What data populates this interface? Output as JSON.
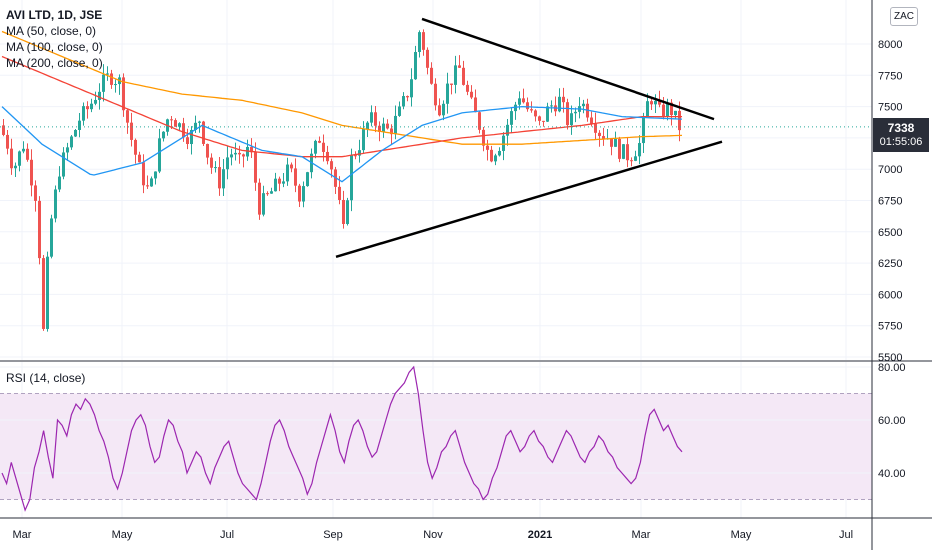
{
  "header": {
    "symbol_line": "AVI LTD, 1D, JSE",
    "ma50": "MA (50, close, 0)",
    "ma100": "MA (100, close, 0)",
    "ma200": "MA (200, close, 0)"
  },
  "rsi_label": "RSI (14, close)",
  "price_badge": {
    "price": "7338",
    "countdown": "01:55:06"
  },
  "zac_button": "ZAC",
  "colors": {
    "up": "#26a69a",
    "down": "#ef5350",
    "ma50": "#2196f3",
    "ma100": "#f44336",
    "ma200": "#ff9800",
    "rsi": "#9c27b0",
    "rsi_band": "#f3e5f5",
    "trendline": "#000000",
    "last_price_line": "#26a69a"
  },
  "chart_data": [
    {
      "type": "candlestick",
      "title": "AVI LTD, 1D, JSE",
      "x": [
        "Mar",
        "May",
        "Jul",
        "Sep",
        "Nov",
        "2021",
        "Mar",
        "May",
        "Jul"
      ],
      "ylim": [
        5500,
        8250
      ],
      "y_ticks": [
        5500,
        5750,
        6000,
        6250,
        6500,
        6750,
        7000,
        7250,
        7500,
        7750,
        8000
      ],
      "last_price": 7338,
      "price_anchors": [
        [
          0,
          7350
        ],
        [
          8,
          7200
        ],
        [
          14,
          7000
        ],
        [
          24,
          7200
        ],
        [
          36,
          6800
        ],
        [
          42,
          6100
        ],
        [
          44,
          5700
        ],
        [
          50,
          6500
        ],
        [
          60,
          7000
        ],
        [
          70,
          7200
        ],
        [
          80,
          7400
        ],
        [
          90,
          7500
        ],
        [
          100,
          7650
        ],
        [
          110,
          7750
        ],
        [
          120,
          7700
        ],
        [
          130,
          7300
        ],
        [
          140,
          7000
        ],
        [
          150,
          6800
        ],
        [
          160,
          7200
        ],
        [
          170,
          7450
        ],
        [
          180,
          7350
        ],
        [
          190,
          7250
        ],
        [
          200,
          7400
        ],
        [
          210,
          7050
        ],
        [
          220,
          6900
        ],
        [
          230,
          7150
        ],
        [
          240,
          7050
        ],
        [
          250,
          7200
        ],
        [
          260,
          6700
        ],
        [
          270,
          6800
        ],
        [
          280,
          6900
        ],
        [
          290,
          7000
        ],
        [
          300,
          6800
        ],
        [
          310,
          7050
        ],
        [
          320,
          7250
        ],
        [
          330,
          7100
        ],
        [
          335,
          6900
        ],
        [
          340,
          6700
        ],
        [
          345,
          6450
        ],
        [
          350,
          7050
        ],
        [
          360,
          7200
        ],
        [
          370,
          7400
        ],
        [
          380,
          7350
        ],
        [
          390,
          7300
        ],
        [
          400,
          7450
        ],
        [
          410,
          7650
        ],
        [
          420,
          8100
        ],
        [
          425,
          7950
        ],
        [
          430,
          7700
        ],
        [
          440,
          7500
        ],
        [
          450,
          7700
        ],
        [
          460,
          7800
        ],
        [
          470,
          7550
        ],
        [
          480,
          7350
        ],
        [
          490,
          7100
        ],
        [
          500,
          7200
        ],
        [
          510,
          7400
        ],
        [
          520,
          7600
        ],
        [
          530,
          7450
        ],
        [
          540,
          7350
        ],
        [
          550,
          7500
        ],
        [
          560,
          7550
        ],
        [
          570,
          7350
        ],
        [
          580,
          7550
        ],
        [
          590,
          7450
        ],
        [
          600,
          7300
        ],
        [
          610,
          7250
        ],
        [
          620,
          7150
        ],
        [
          630,
          7100
        ],
        [
          640,
          7200
        ],
        [
          650,
          7600
        ],
        [
          660,
          7450
        ],
        [
          670,
          7500
        ],
        [
          680,
          7338
        ]
      ],
      "ma50_anchors": [
        [
          0,
          7500
        ],
        [
          40,
          7200
        ],
        [
          90,
          6950
        ],
        [
          140,
          7050
        ],
        [
          200,
          7350
        ],
        [
          260,
          7150
        ],
        [
          300,
          7100
        ],
        [
          340,
          6900
        ],
        [
          380,
          7150
        ],
        [
          420,
          7350
        ],
        [
          460,
          7450
        ],
        [
          520,
          7500
        ],
        [
          580,
          7480
        ],
        [
          620,
          7420
        ],
        [
          680,
          7400
        ]
      ],
      "ma100_anchors": [
        [
          0,
          7900
        ],
        [
          60,
          7700
        ],
        [
          120,
          7500
        ],
        [
          180,
          7300
        ],
        [
          240,
          7150
        ],
        [
          300,
          7100
        ],
        [
          340,
          7100
        ],
        [
          380,
          7150
        ],
        [
          420,
          7200
        ],
        [
          460,
          7250
        ],
        [
          520,
          7300
        ],
        [
          580,
          7350
        ],
        [
          640,
          7420
        ],
        [
          680,
          7420
        ]
      ],
      "ma200_anchors": [
        [
          0,
          8100
        ],
        [
          60,
          7900
        ],
        [
          120,
          7700
        ],
        [
          180,
          7600
        ],
        [
          240,
          7550
        ],
        [
          300,
          7450
        ],
        [
          340,
          7350
        ],
        [
          380,
          7300
        ],
        [
          420,
          7250
        ],
        [
          460,
          7200
        ],
        [
          520,
          7200
        ],
        [
          580,
          7230
        ],
        [
          640,
          7260
        ],
        [
          680,
          7270
        ]
      ],
      "trendline_upper": [
        [
          420,
          8200
        ],
        [
          712,
          7400
        ]
      ],
      "trendline_lower": [
        [
          334,
          6300
        ],
        [
          720,
          7220
        ]
      ]
    },
    {
      "type": "line",
      "title": "RSI (14, close)",
      "ylim": [
        25,
        80
      ],
      "y_ticks": [
        40.0,
        60.0,
        80.0
      ],
      "band": [
        30,
        70
      ],
      "series": [
        {
          "values": [
            40,
            36,
            44,
            38,
            32,
            26,
            30,
            42,
            48,
            56,
            46,
            38,
            60,
            58,
            54,
            62,
            66,
            64,
            68,
            66,
            62,
            56,
            52,
            46,
            38,
            34,
            40,
            48,
            56,
            60,
            62,
            58,
            50,
            44,
            46,
            54,
            60,
            58,
            52,
            48,
            40,
            44,
            48,
            46,
            40,
            36,
            42,
            46,
            50,
            52,
            46,
            40,
            36,
            34,
            32,
            30,
            36,
            44,
            52,
            58,
            60,
            56,
            50,
            46,
            42,
            38,
            32,
            36,
            44,
            50,
            56,
            62,
            56,
            48,
            44,
            52,
            58,
            60,
            56,
            50,
            46,
            48,
            54,
            60,
            66,
            70,
            72,
            74,
            78,
            80,
            70,
            56,
            44,
            38,
            42,
            48,
            50,
            54,
            56,
            50,
            44,
            40,
            36,
            34,
            30,
            32,
            38,
            42,
            48,
            54,
            56,
            52,
            48,
            50,
            54,
            56,
            52,
            50,
            46,
            44,
            48,
            52,
            56,
            54,
            50,
            46,
            44,
            48,
            50,
            54,
            52,
            48,
            46,
            42,
            40,
            38,
            36,
            38,
            44,
            54,
            62,
            64,
            60,
            56,
            58,
            54,
            50,
            48
          ]
        }
      ]
    }
  ]
}
